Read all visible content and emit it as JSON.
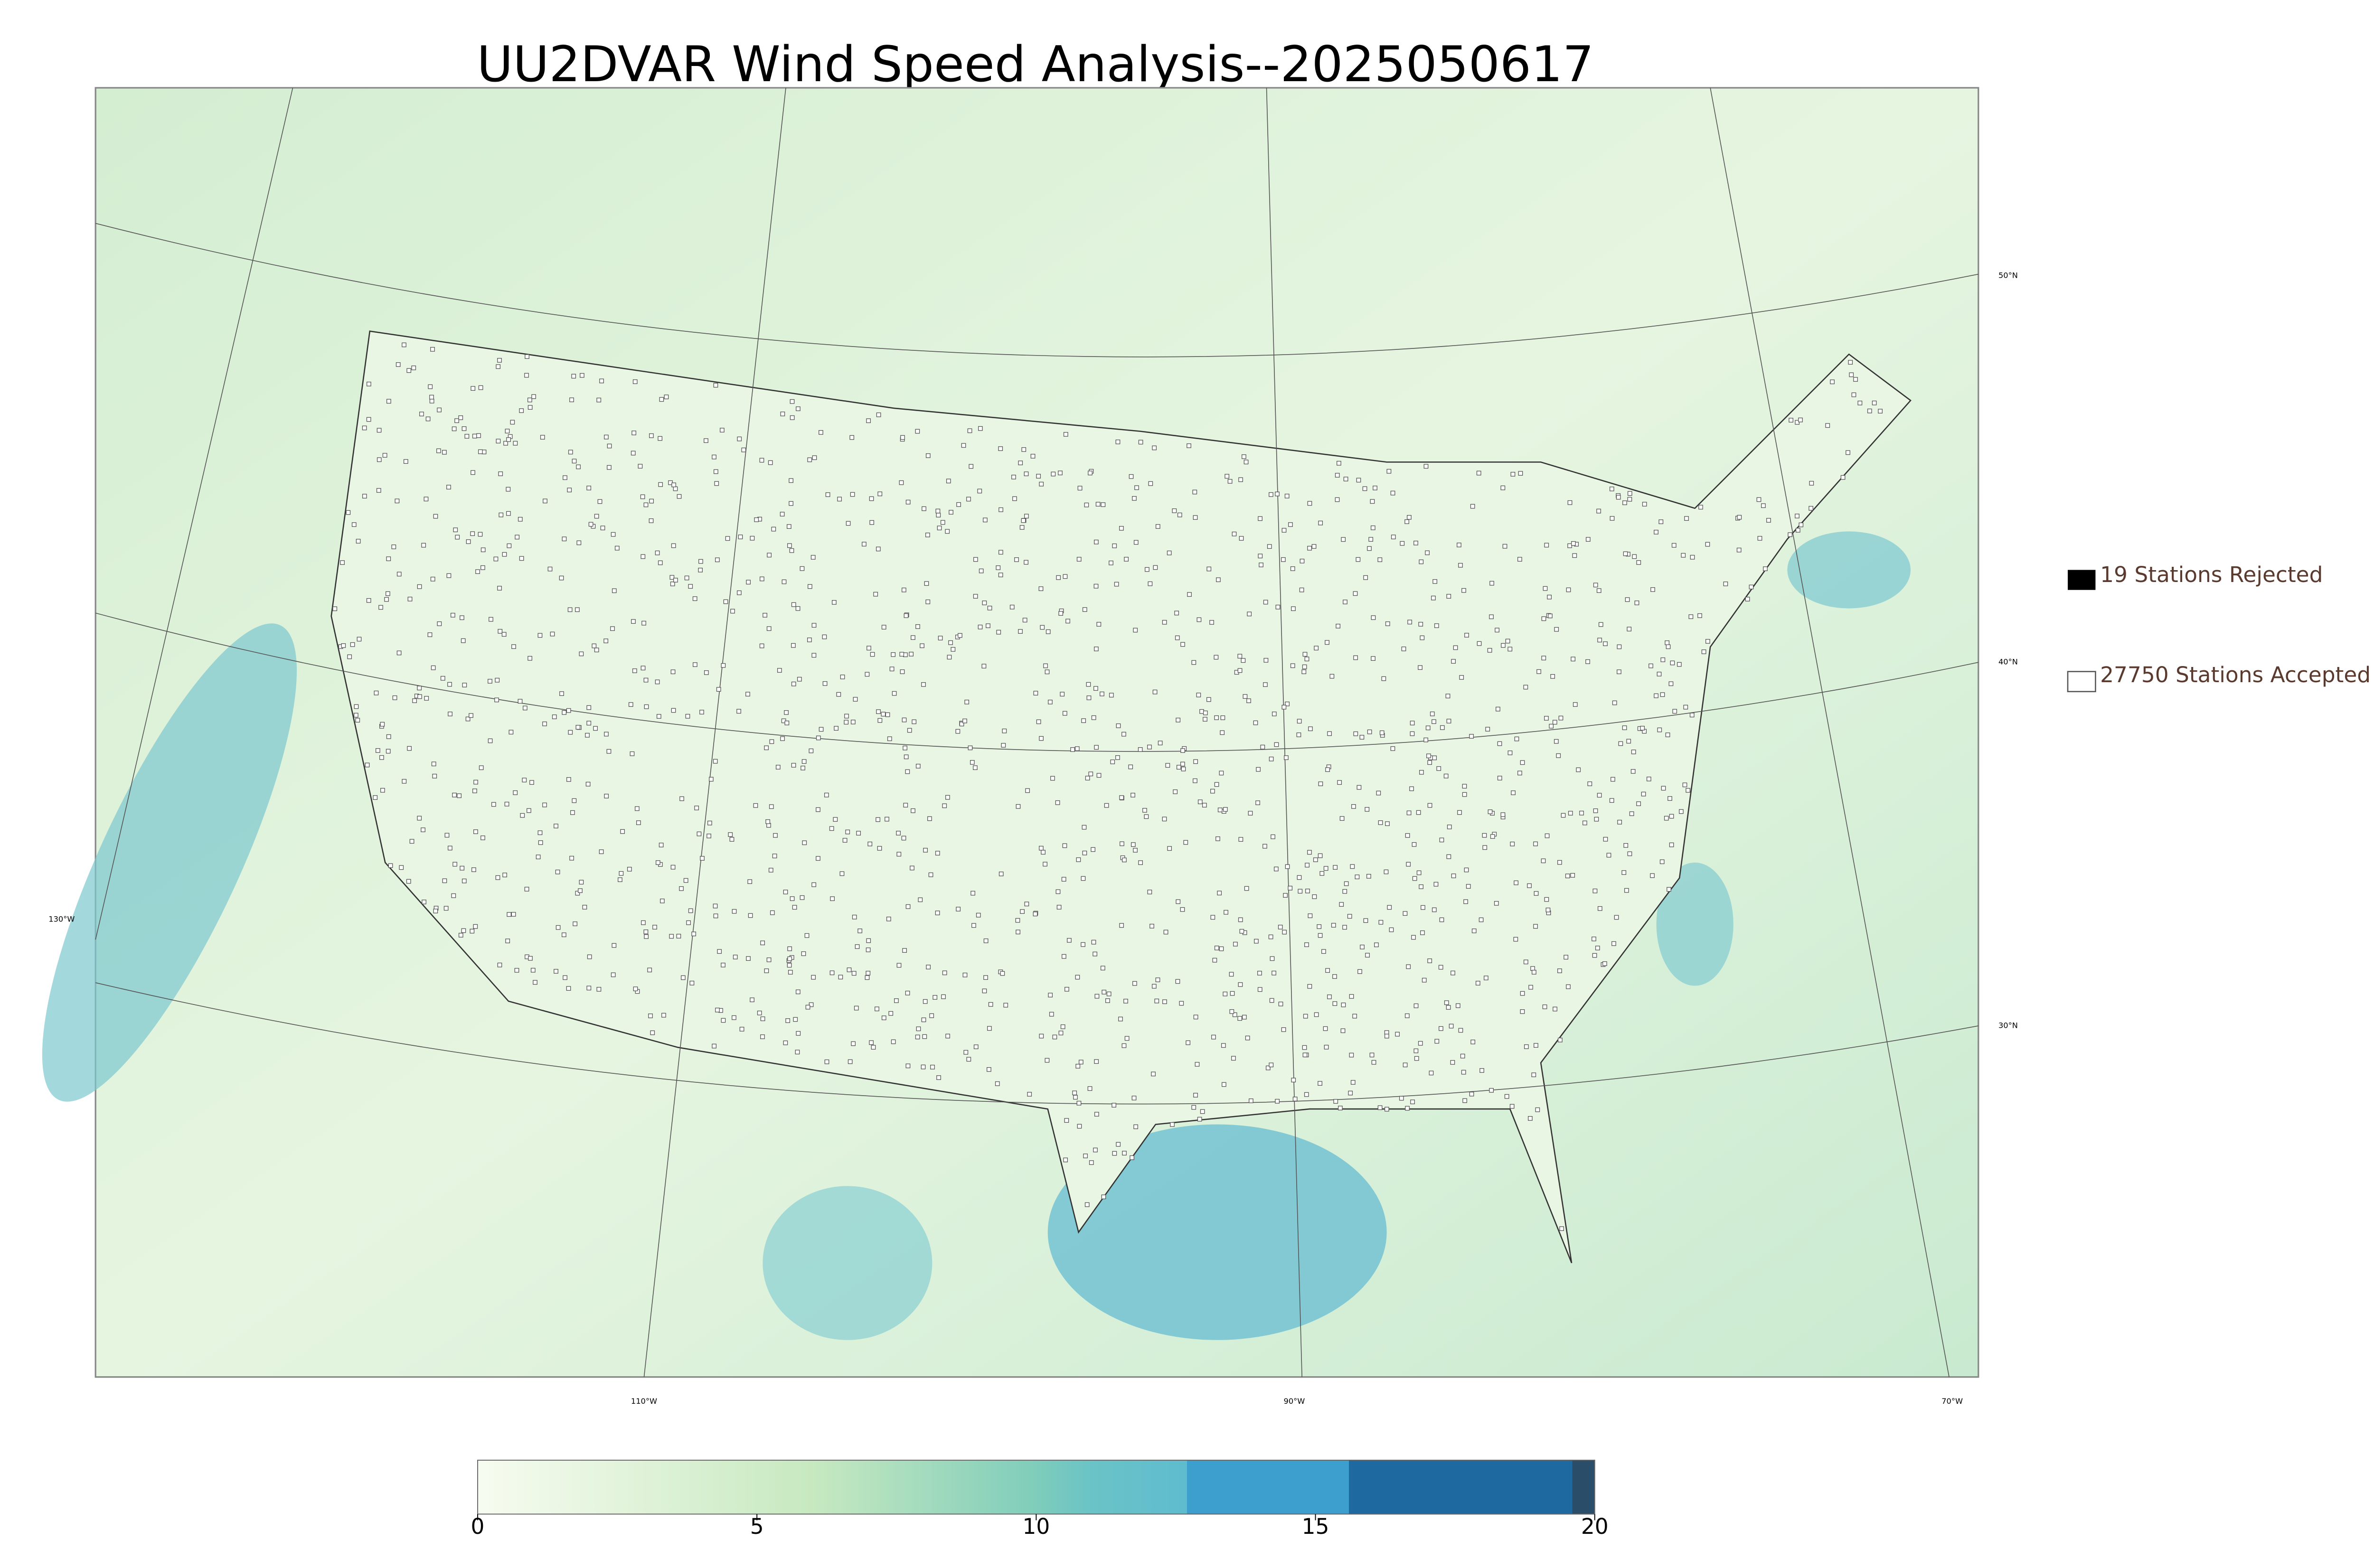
{
  "header": {
    "title": "UU2DVAR Wind Speed Analysis--2025050617"
  },
  "legend": {
    "items": [
      {
        "label": "19 Stations Rejected"
      },
      {
        "label": "27750 Stations Accepted"
      }
    ]
  },
  "map": {
    "lat_labels": [
      "50°N",
      "40°N",
      "30°N"
    ],
    "lon_labels": [
      "130°W",
      "110°W",
      "90°W",
      "70°W"
    ]
  },
  "colorbar": {
    "range": [
      0,
      20
    ],
    "ticks": [
      0,
      5,
      10,
      15,
      20
    ]
  }
}
